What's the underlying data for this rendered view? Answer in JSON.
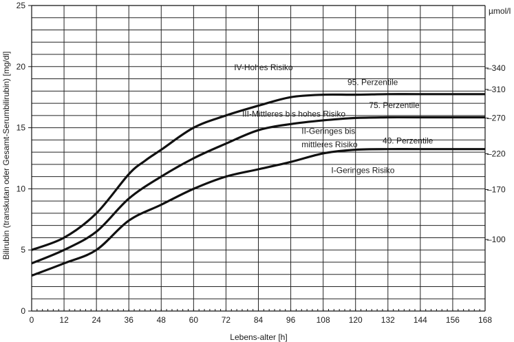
{
  "chart_data": {
    "type": "line",
    "xlabel": "Lebens-alter [h]",
    "ylabel": "Bilirubin (transkutan oder Gesamt-Serumbilirubin) [mg/dl]",
    "y2label": "µmol/l",
    "xlim": [
      0,
      168
    ],
    "ylim": [
      0,
      25
    ],
    "grid": true,
    "x_ticks": [
      "0",
      "12",
      "24",
      "36",
      "48",
      "60",
      "72",
      "84",
      "96",
      "108",
      "120",
      "132",
      "144",
      "156",
      "168"
    ],
    "y_ticks": [
      "0",
      "5",
      "10",
      "15",
      "20",
      "25"
    ],
    "y2_ticks": [
      {
        "label": "–100",
        "value": 5.85
      },
      {
        "label": "–170",
        "value": 9.94
      },
      {
        "label": "–220",
        "value": 12.87
      },
      {
        "label": "–270",
        "value": 15.79
      },
      {
        "label": "–310",
        "value": 18.13
      },
      {
        "label": "–340",
        "value": 19.88
      }
    ],
    "series": [
      {
        "name": "95. Perzentile",
        "x": [
          0,
          12,
          24,
          36,
          42,
          48,
          60,
          72,
          84,
          96,
          108,
          120,
          132,
          144,
          168
        ],
        "y": [
          5.0,
          6.0,
          8.0,
          11.2,
          12.3,
          13.2,
          15.0,
          16.0,
          16.8,
          17.5,
          17.7,
          17.7,
          17.75,
          17.75,
          17.75
        ]
      },
      {
        "name": "75. Perzentile",
        "x": [
          0,
          12,
          24,
          36,
          48,
          60,
          72,
          84,
          96,
          108,
          120,
          132,
          144,
          168
        ],
        "y": [
          3.9,
          5.0,
          6.5,
          9.2,
          11.0,
          12.5,
          13.7,
          14.8,
          15.3,
          15.6,
          15.8,
          15.85,
          15.85,
          15.85
        ]
      },
      {
        "name": "40. Perzentile",
        "x": [
          0,
          12,
          24,
          36,
          48,
          60,
          72,
          84,
          96,
          108,
          120,
          132,
          144,
          168
        ],
        "y": [
          2.9,
          3.9,
          5.0,
          7.4,
          8.7,
          10.0,
          11.0,
          11.6,
          12.2,
          12.9,
          13.2,
          13.25,
          13.25,
          13.25
        ]
      }
    ],
    "zones": [
      {
        "label": "IV-Hohes Risiko",
        "x": 75,
        "y": 19.7
      },
      {
        "label": "III-Mittleres bis hohes Risiko",
        "x": 78,
        "y": 15.9
      },
      {
        "label": "II-Geringes bis",
        "x": 100,
        "y": 14.5
      },
      {
        "label": "mittleres Risiko",
        "x": 100,
        "y": 13.4
      },
      {
        "label": "I-Geringes Risiko",
        "x": 111,
        "y": 11.3
      }
    ],
    "percentile_labels": [
      {
        "label": "95. Perzentile",
        "x": 117,
        "y": 18.5
      },
      {
        "label": "75. Perzentile",
        "x": 125,
        "y": 16.6
      },
      {
        "label": "40. Perzentile",
        "x": 130,
        "y": 13.7
      }
    ]
  }
}
